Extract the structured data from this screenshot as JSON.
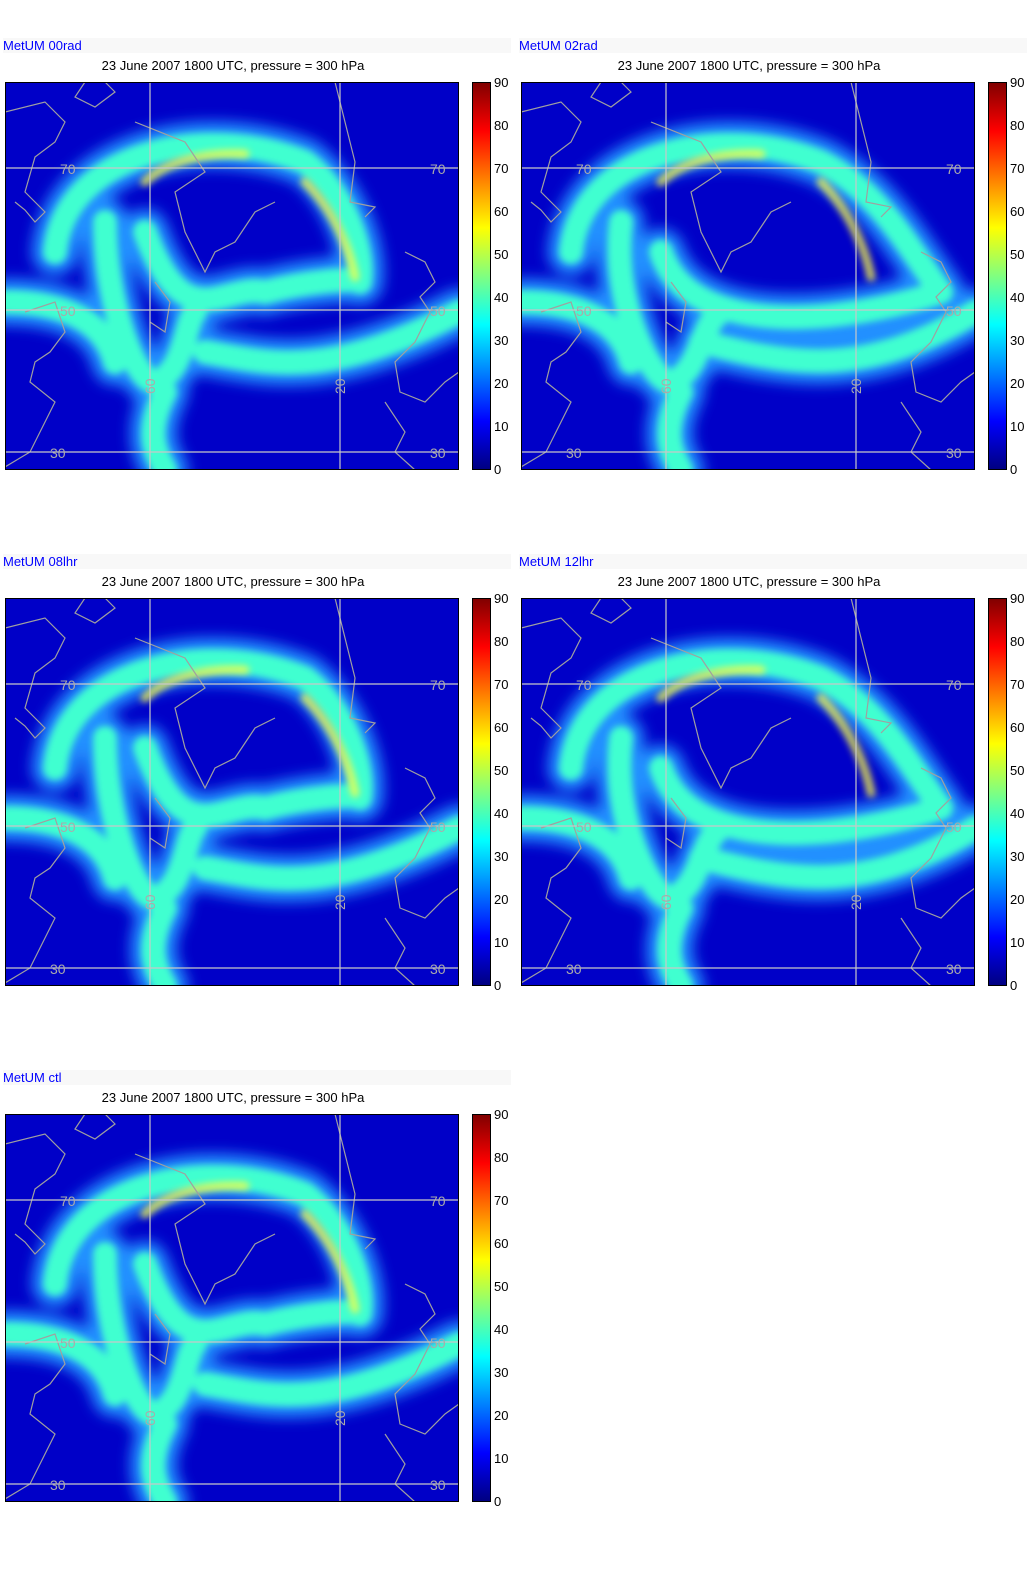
{
  "colorbar": {
    "ticks": [
      "90",
      "80",
      "70",
      "60",
      "50",
      "40",
      "30",
      "20",
      "10",
      "0"
    ],
    "colors": [
      "#000080",
      "#0000ff",
      "#0080ff",
      "#00ffff",
      "#80ff80",
      "#ffff00",
      "#ff8000",
      "#ff0000",
      "#800000"
    ]
  },
  "panels": [
    {
      "id": "p1",
      "run": "MetUM 00rad",
      "title": "23 June 2007 1800 UTC, pressure = 300 hPa"
    },
    {
      "id": "p2",
      "run": "MetUM 02rad",
      "title": "23 June 2007 1800 UTC, pressure = 300 hPa"
    },
    {
      "id": "p3",
      "run": "MetUM 08lhr",
      "title": "23 June 2007 1800 UTC, pressure = 300 hPa"
    },
    {
      "id": "p4",
      "run": "MetUM 12lhr",
      "title": "23 June 2007 1800 UTC, pressure = 300 hPa"
    },
    {
      "id": "p5",
      "run": "MetUM ctl",
      "title": "23 June 2007 1800 UTC, pressure = 300 hPa"
    }
  ],
  "grid_labels": {
    "lat70": "70",
    "lat50": "50",
    "lat30": "30",
    "lon60": "60",
    "lon20": "20"
  },
  "colors": {
    "ocean": "#0000c8",
    "jet_core": "#ffff40",
    "jet_mid": "#40ffd0",
    "jet_edge": "#2090ff",
    "grid": "#c8c8c8",
    "coast": "#a0a0a0",
    "run_label": "#0000ff"
  }
}
